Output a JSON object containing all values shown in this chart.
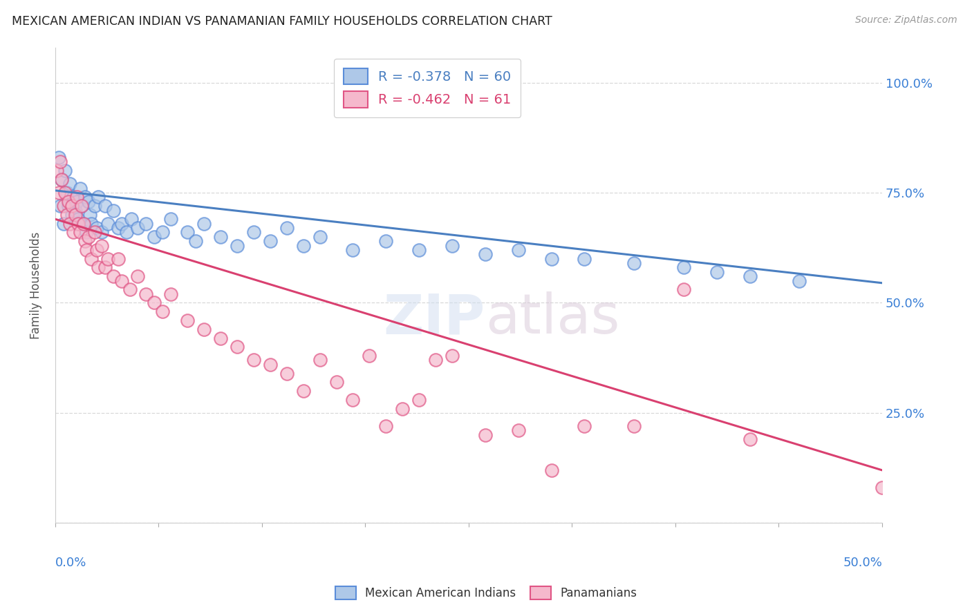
{
  "title": "MEXICAN AMERICAN INDIAN VS PANAMANIAN FAMILY HOUSEHOLDS CORRELATION CHART",
  "source": "Source: ZipAtlas.com",
  "ylabel": "Family Households",
  "legend_blue": {
    "R": "-0.378",
    "N": "60",
    "label": "Mexican American Indians"
  },
  "legend_pink": {
    "R": "-0.462",
    "N": "61",
    "label": "Panamanians"
  },
  "blue_color": "#aec8e8",
  "pink_color": "#f5b8cc",
  "blue_edge": "#5b8dd9",
  "pink_edge": "#e05585",
  "trendline_blue": "#4a7fc1",
  "trendline_pink": "#d94070",
  "watermark": "ZIPatlas",
  "blue_points": [
    [
      0.002,
      0.83
    ],
    [
      0.003,
      0.72
    ],
    [
      0.004,
      0.78
    ],
    [
      0.005,
      0.68
    ],
    [
      0.006,
      0.8
    ],
    [
      0.007,
      0.75
    ],
    [
      0.008,
      0.72
    ],
    [
      0.009,
      0.77
    ],
    [
      0.01,
      0.7
    ],
    [
      0.011,
      0.74
    ],
    [
      0.012,
      0.71
    ],
    [
      0.013,
      0.73
    ],
    [
      0.014,
      0.69
    ],
    [
      0.015,
      0.76
    ],
    [
      0.016,
      0.72
    ],
    [
      0.017,
      0.68
    ],
    [
      0.018,
      0.74
    ],
    [
      0.019,
      0.66
    ],
    [
      0.02,
      0.73
    ],
    [
      0.021,
      0.7
    ],
    [
      0.022,
      0.68
    ],
    [
      0.024,
      0.72
    ],
    [
      0.025,
      0.67
    ],
    [
      0.026,
      0.74
    ],
    [
      0.028,
      0.66
    ],
    [
      0.03,
      0.72
    ],
    [
      0.032,
      0.68
    ],
    [
      0.035,
      0.71
    ],
    [
      0.038,
      0.67
    ],
    [
      0.04,
      0.68
    ],
    [
      0.043,
      0.66
    ],
    [
      0.046,
      0.69
    ],
    [
      0.05,
      0.67
    ],
    [
      0.055,
      0.68
    ],
    [
      0.06,
      0.65
    ],
    [
      0.065,
      0.66
    ],
    [
      0.07,
      0.69
    ],
    [
      0.08,
      0.66
    ],
    [
      0.085,
      0.64
    ],
    [
      0.09,
      0.68
    ],
    [
      0.1,
      0.65
    ],
    [
      0.11,
      0.63
    ],
    [
      0.12,
      0.66
    ],
    [
      0.13,
      0.64
    ],
    [
      0.14,
      0.67
    ],
    [
      0.15,
      0.63
    ],
    [
      0.16,
      0.65
    ],
    [
      0.18,
      0.62
    ],
    [
      0.2,
      0.64
    ],
    [
      0.22,
      0.62
    ],
    [
      0.24,
      0.63
    ],
    [
      0.26,
      0.61
    ],
    [
      0.28,
      0.62
    ],
    [
      0.3,
      0.6
    ],
    [
      0.32,
      0.6
    ],
    [
      0.35,
      0.59
    ],
    [
      0.38,
      0.58
    ],
    [
      0.4,
      0.57
    ],
    [
      0.42,
      0.56
    ],
    [
      0.45,
      0.55
    ]
  ],
  "pink_points": [
    [
      0.001,
      0.8
    ],
    [
      0.002,
      0.75
    ],
    [
      0.003,
      0.82
    ],
    [
      0.004,
      0.78
    ],
    [
      0.005,
      0.72
    ],
    [
      0.006,
      0.75
    ],
    [
      0.007,
      0.7
    ],
    [
      0.008,
      0.73
    ],
    [
      0.009,
      0.68
    ],
    [
      0.01,
      0.72
    ],
    [
      0.011,
      0.66
    ],
    [
      0.012,
      0.7
    ],
    [
      0.013,
      0.74
    ],
    [
      0.014,
      0.68
    ],
    [
      0.015,
      0.66
    ],
    [
      0.016,
      0.72
    ],
    [
      0.017,
      0.68
    ],
    [
      0.018,
      0.64
    ],
    [
      0.019,
      0.62
    ],
    [
      0.02,
      0.65
    ],
    [
      0.022,
      0.6
    ],
    [
      0.024,
      0.66
    ],
    [
      0.025,
      0.62
    ],
    [
      0.026,
      0.58
    ],
    [
      0.028,
      0.63
    ],
    [
      0.03,
      0.58
    ],
    [
      0.032,
      0.6
    ],
    [
      0.035,
      0.56
    ],
    [
      0.038,
      0.6
    ],
    [
      0.04,
      0.55
    ],
    [
      0.045,
      0.53
    ],
    [
      0.05,
      0.56
    ],
    [
      0.055,
      0.52
    ],
    [
      0.06,
      0.5
    ],
    [
      0.065,
      0.48
    ],
    [
      0.07,
      0.52
    ],
    [
      0.08,
      0.46
    ],
    [
      0.09,
      0.44
    ],
    [
      0.1,
      0.42
    ],
    [
      0.11,
      0.4
    ],
    [
      0.12,
      0.37
    ],
    [
      0.13,
      0.36
    ],
    [
      0.14,
      0.34
    ],
    [
      0.15,
      0.3
    ],
    [
      0.16,
      0.37
    ],
    [
      0.17,
      0.32
    ],
    [
      0.18,
      0.28
    ],
    [
      0.19,
      0.38
    ],
    [
      0.2,
      0.22
    ],
    [
      0.21,
      0.26
    ],
    [
      0.22,
      0.28
    ],
    [
      0.23,
      0.37
    ],
    [
      0.24,
      0.38
    ],
    [
      0.26,
      0.2
    ],
    [
      0.28,
      0.21
    ],
    [
      0.3,
      0.12
    ],
    [
      0.32,
      0.22
    ],
    [
      0.35,
      0.22
    ],
    [
      0.38,
      0.53
    ],
    [
      0.42,
      0.19
    ],
    [
      0.5,
      0.08
    ]
  ],
  "xlim": [
    0.0,
    0.5
  ],
  "ylim": [
    0.0,
    1.08
  ],
  "ytick_positions": [
    0.0,
    0.25,
    0.5,
    0.75,
    1.0
  ],
  "ytick_labels": [
    "",
    "25.0%",
    "50.0%",
    "75.0%",
    "100.0%"
  ],
  "xtick_positions": [
    0.0,
    0.0625,
    0.125,
    0.1875,
    0.25,
    0.3125,
    0.375,
    0.4375,
    0.5
  ],
  "background_color": "#ffffff",
  "grid_color": "#d8d8d8"
}
